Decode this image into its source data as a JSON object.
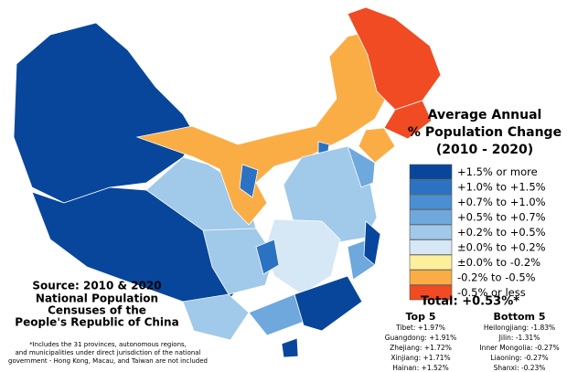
{
  "title": [
    "Average Annual",
    "% Population Change",
    "(2010 - 2020)"
  ],
  "legend": [
    {
      "label": "+1.5% or more",
      "color": "#08469c"
    },
    {
      "label": "+1.0% to +1.5%",
      "color": "#2b72c2"
    },
    {
      "label": "+0.7% to +1.0%",
      "color": "#4b8fd3"
    },
    {
      "label": "+0.5% to +0.7%",
      "color": "#6ea8dd"
    },
    {
      "label": "+0.2% to +0.5%",
      "color": "#a0c9ea"
    },
    {
      "label": "±0.0% to +0.2%",
      "color": "#d6e7f5"
    },
    {
      "label": "±0.0% to -0.2%",
      "color": "#fdf09c"
    },
    {
      "label": "-0.2% to -0.5%",
      "color": "#fbad45"
    },
    {
      "label": "-0.5% or less",
      "color": "#f04b22"
    }
  ],
  "total": "Total: +0.53%*",
  "top5": {
    "heading": "Top 5",
    "items": [
      "Tibet: +1.97%",
      "Guangdong: +1.91%",
      "Zhejiang: +1.72%",
      "Xinjiang: +1.71%",
      "Hainan: +1.52%"
    ]
  },
  "bottom5": {
    "heading": "Bottom 5",
    "items": [
      "Heilongjiang: -1.83%",
      "Jilin: -1.31%",
      "Inner Mongolia: -0.27%",
      "Liaoning: -0.27%",
      "Shanxi: -0.23%"
    ]
  },
  "source": [
    "Source: 2010 & 2020",
    "National Population",
    "Censuses of the",
    "People's Republic of China"
  ],
  "footnote": [
    "*Includes the 31 provinces, autonomous regions,",
    "and municipalities under direct jurisdiction of the national",
    "government - Hong Kong, Macau, and Taiwan are not included"
  ]
}
